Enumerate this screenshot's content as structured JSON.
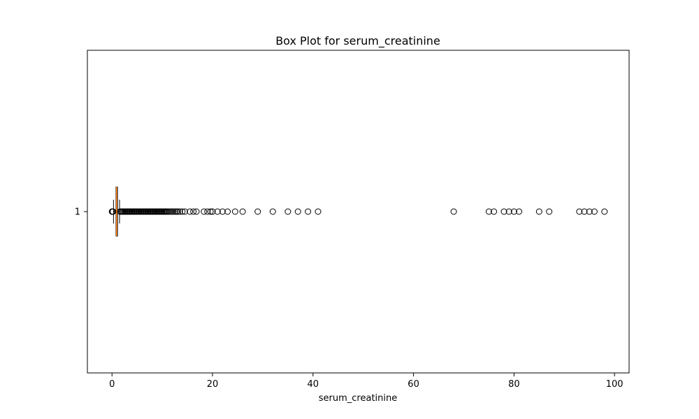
{
  "chart_data": {
    "type": "box",
    "orientation": "horizontal",
    "title": "Box Plot for serum_creatinine",
    "xlabel": "serum_creatinine",
    "ylabel": "",
    "xlim": [
      -4.9,
      102.9
    ],
    "x_ticks": [
      0,
      20,
      40,
      60,
      80,
      100
    ],
    "y_ticks": [
      "1"
    ],
    "grid": false,
    "legend": "none",
    "series": [
      {
        "label": "1",
        "min": 0.3,
        "q1": 0.8,
        "median": 0.9,
        "q3": 1.1,
        "max": 1.5,
        "outliers": [
          0.0,
          0.05,
          0.1,
          0.15,
          0.2,
          1.6,
          1.8,
          2.0,
          2.2,
          2.4,
          2.6,
          2.8,
          3.0,
          3.2,
          3.4,
          3.6,
          3.8,
          4.0,
          4.2,
          4.4,
          4.6,
          4.8,
          5.0,
          5.2,
          5.4,
          5.6,
          5.8,
          6.0,
          6.2,
          6.4,
          6.6,
          6.8,
          7.0,
          7.2,
          7.4,
          7.6,
          7.8,
          8.0,
          8.2,
          8.4,
          8.6,
          8.8,
          9.0,
          9.2,
          9.4,
          9.6,
          9.8,
          10.0,
          10.2,
          10.4,
          10.6,
          10.8,
          11.0,
          11.3,
          11.6,
          11.9,
          12.2,
          12.5,
          12.8,
          13.1,
          13.5,
          14.0,
          14.5,
          15.5,
          16.2,
          16.8,
          18.3,
          19.0,
          19.6,
          20.0,
          21.0,
          22.0,
          23.0,
          24.5,
          26.0,
          29.0,
          32.0,
          35.0,
          37.0,
          39.0,
          41.0,
          68.0,
          75.0,
          76.0,
          78.0,
          79.0,
          80.0,
          81.0,
          85.0,
          87.0,
          93.0,
          94.0,
          95.0,
          96.0,
          98.0
        ]
      }
    ],
    "colors": {
      "median": "#ff7f0e",
      "box": "#000000",
      "outlier_edge": "#000000",
      "background": "#ffffff"
    }
  }
}
